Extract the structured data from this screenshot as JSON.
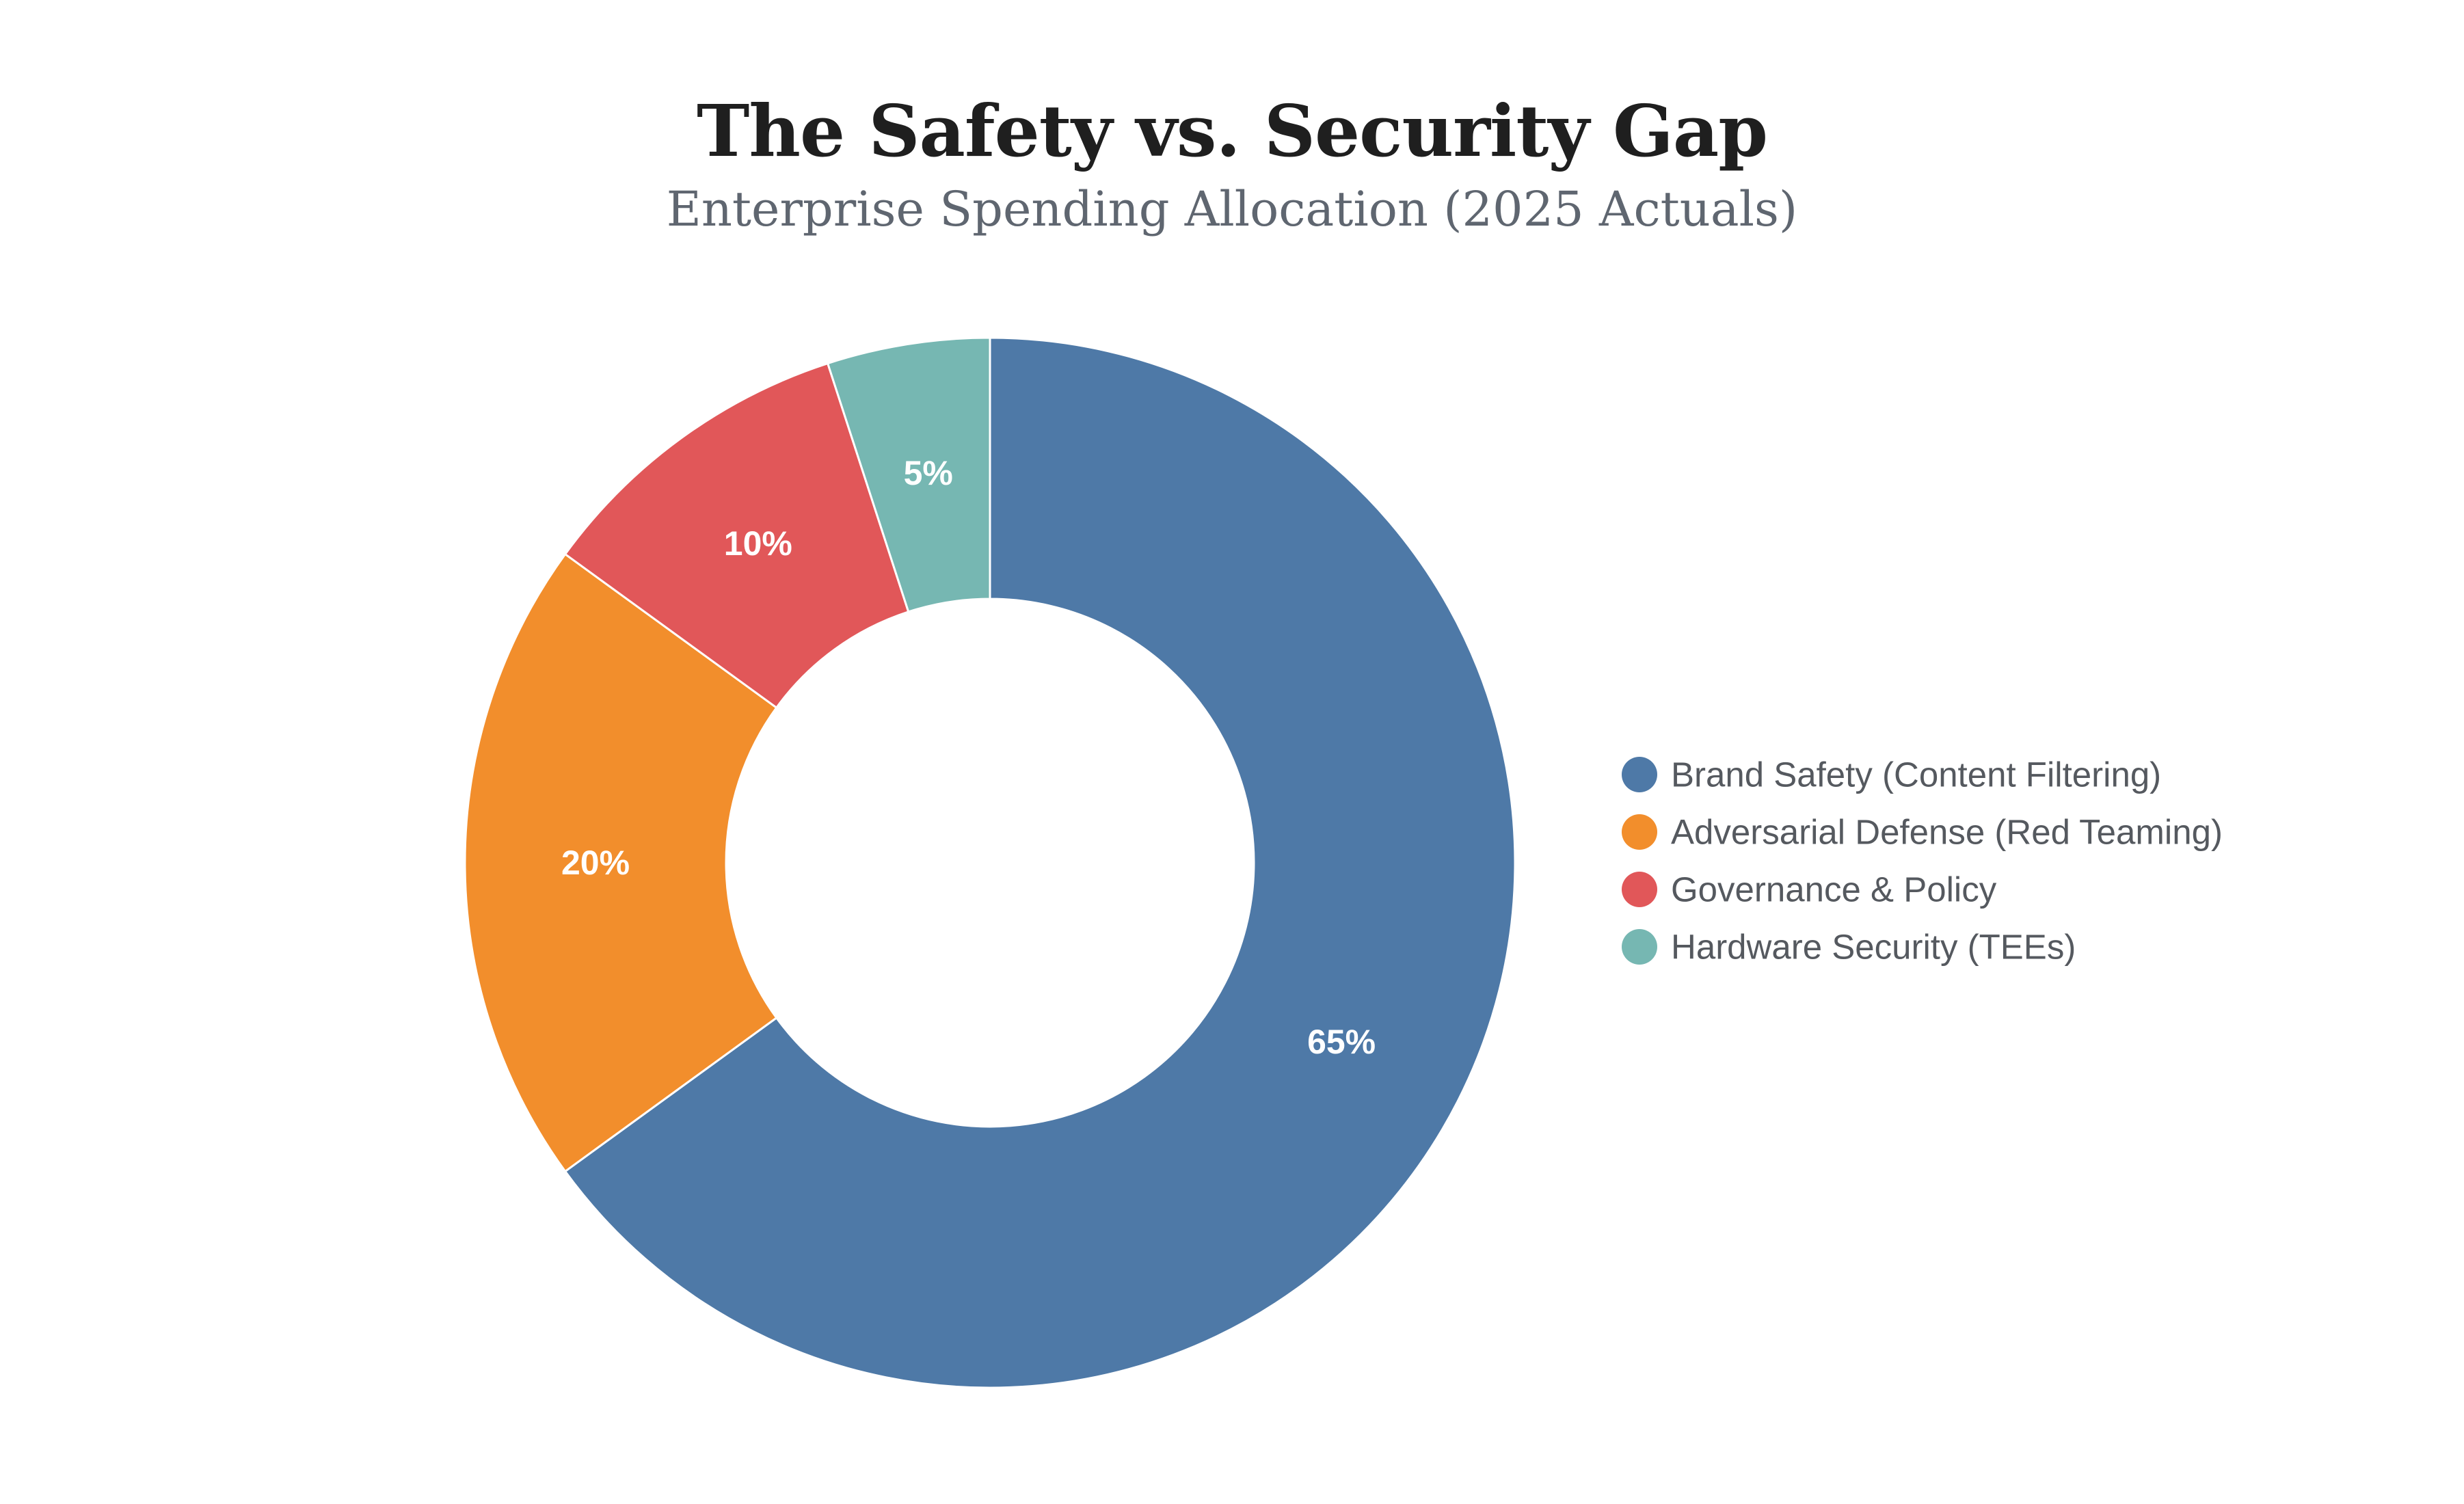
{
  "chart_data": {
    "type": "pie",
    "variant": "donut",
    "title": "The Safety vs. Security Gap",
    "subtitle": "Enterprise Spending Allocation (2025 Actuals)",
    "categories": [
      "Brand Safety (Content Filtering)",
      "Adversarial Defense (Red Teaming)",
      "Governance & Policy",
      "Hardware Security (TEEs)"
    ],
    "values": [
      65,
      20,
      10,
      5
    ],
    "value_labels": [
      "65%",
      "20%",
      "10%",
      "5%"
    ],
    "unit": "%",
    "colors": [
      "#4e79a7",
      "#f28e2c",
      "#e15759",
      "#76b7b2"
    ],
    "legend_position": "right"
  }
}
